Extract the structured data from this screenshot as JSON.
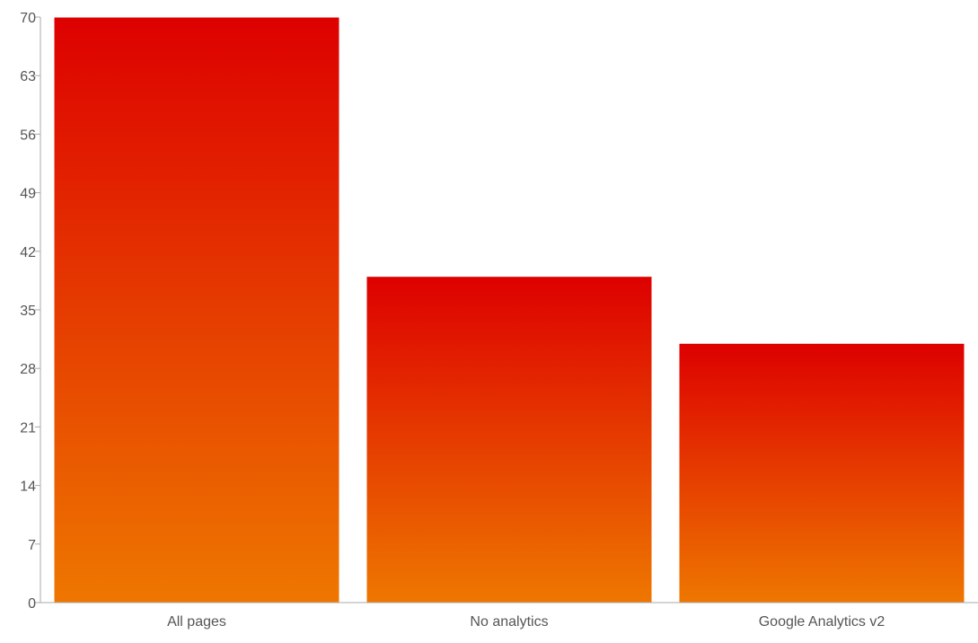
{
  "chart_data": {
    "type": "bar",
    "title": "",
    "xlabel": "",
    "ylabel": "",
    "categories": [
      "All pages",
      "No analytics",
      "Google Analytics v2"
    ],
    "values": [
      70,
      39,
      31
    ],
    "ylim": [
      0,
      70
    ],
    "yticks": [
      0,
      7,
      14,
      21,
      28,
      35,
      42,
      49,
      56,
      63,
      70
    ],
    "grid": false,
    "legend": "none",
    "colors": {
      "bar_top": "#dd0000",
      "bar_bottom": "#ee7700",
      "axis": "#aaaaaa",
      "text": "#555555",
      "bar_edge": "#ffffff"
    }
  }
}
